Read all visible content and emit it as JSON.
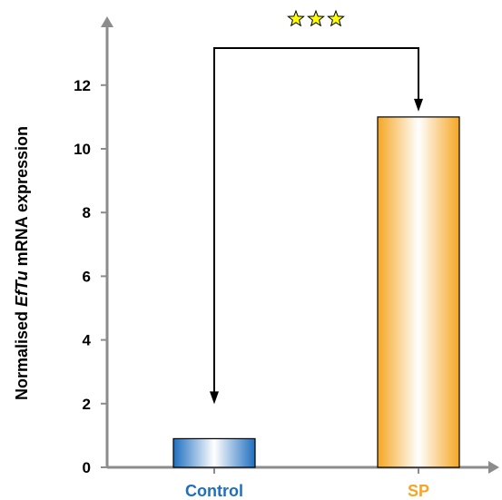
{
  "chart_data": {
    "type": "bar",
    "categories": [
      "Control",
      "SP"
    ],
    "values": [
      0.9,
      11.0
    ],
    "ylabel_parts": [
      "Normalised ",
      "EfTu",
      " mRNA expression"
    ],
    "xlabel": "",
    "title": "",
    "ylim": [
      0,
      14
    ],
    "yticks": [
      0,
      2,
      4,
      6,
      8,
      10,
      12
    ],
    "grid": false,
    "legend": "none",
    "significance": {
      "label": "☆☆☆",
      "between": [
        "Control",
        "SP"
      ]
    },
    "colors": {
      "control": "#1f6fbf",
      "sp": "#f5a623",
      "axis": "#8c8c8c",
      "star_fill": "#ffff00"
    }
  }
}
